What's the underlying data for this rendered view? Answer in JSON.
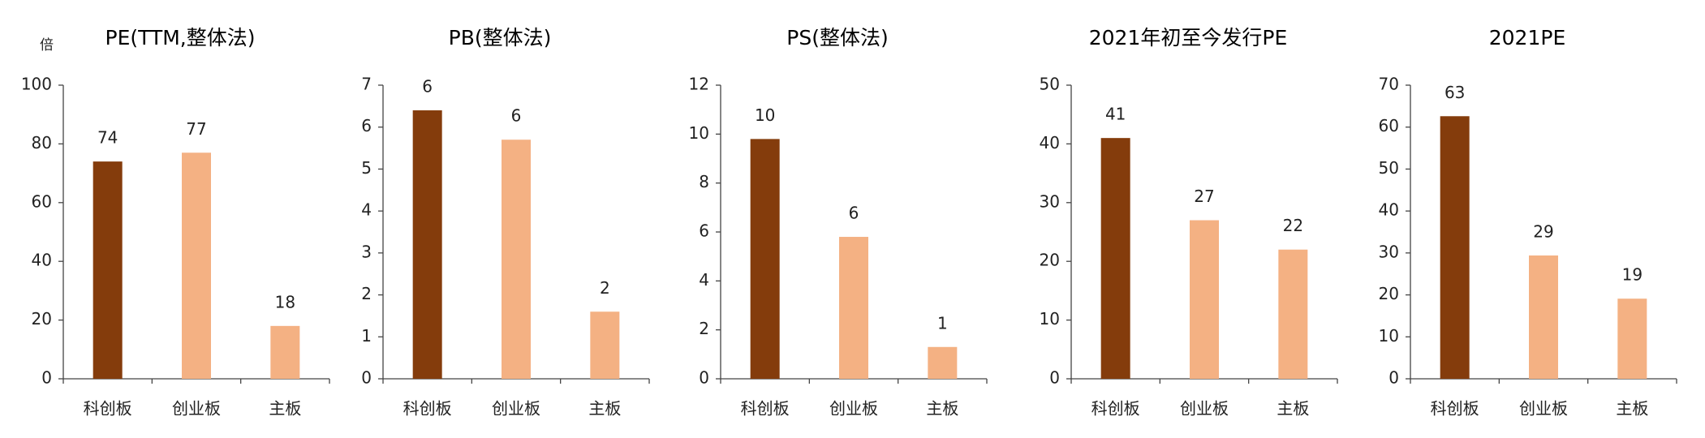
{
  "chart_data": [
    {
      "type": "bar",
      "title": "PE(TTM,整体法)",
      "y_label": "倍",
      "categories": [
        "科创板",
        "创业板",
        "主板"
      ],
      "values": [
        74,
        77,
        18
      ],
      "colors": [
        "#843c0c",
        "#f4b183",
        "#f4b183"
      ],
      "ylim": [
        0,
        100
      ],
      "yticks": [
        0,
        20,
        40,
        60,
        80,
        100
      ],
      "grid": false
    },
    {
      "type": "bar",
      "title": "PB(整体法)",
      "categories": [
        "科创板",
        "创业板",
        "主板"
      ],
      "values": [
        6.4,
        5.7,
        1.6
      ],
      "value_labels": [
        "6",
        "6",
        "2"
      ],
      "colors": [
        "#843c0c",
        "#f4b183",
        "#f4b183"
      ],
      "ylim": [
        0,
        7
      ],
      "yticks": [
        0,
        1,
        2,
        3,
        4,
        5,
        6,
        7
      ],
      "grid": false
    },
    {
      "type": "bar",
      "title": "PS(整体法)",
      "categories": [
        "科创板",
        "创业板",
        "主板"
      ],
      "values": [
        9.8,
        5.8,
        1.3
      ],
      "value_labels": [
        "10",
        "6",
        "1"
      ],
      "colors": [
        "#843c0c",
        "#f4b183",
        "#f4b183"
      ],
      "ylim": [
        0,
        12
      ],
      "yticks": [
        0,
        2,
        4,
        6,
        8,
        10,
        12
      ],
      "grid": false
    },
    {
      "type": "bar",
      "title": "2021年初至今发行PE",
      "categories": [
        "科创板",
        "创业板",
        "主板"
      ],
      "values": [
        41,
        27,
        22
      ],
      "colors": [
        "#843c0c",
        "#f4b183",
        "#f4b183"
      ],
      "ylim": [
        0,
        50
      ],
      "yticks": [
        0,
        10,
        20,
        30,
        40,
        50
      ],
      "grid": false
    },
    {
      "type": "bar",
      "title": "2021PE",
      "categories": [
        "科创板",
        "创业板",
        "主板"
      ],
      "values": [
        62.6,
        29.4,
        19.1
      ],
      "value_labels": [
        "63",
        "29",
        "19"
      ],
      "colors": [
        "#843c0c",
        "#f4b183",
        "#f4b183"
      ],
      "ylim": [
        0,
        70
      ],
      "yticks": [
        0,
        10,
        20,
        30,
        40,
        50,
        60,
        70
      ],
      "grid": false
    }
  ]
}
